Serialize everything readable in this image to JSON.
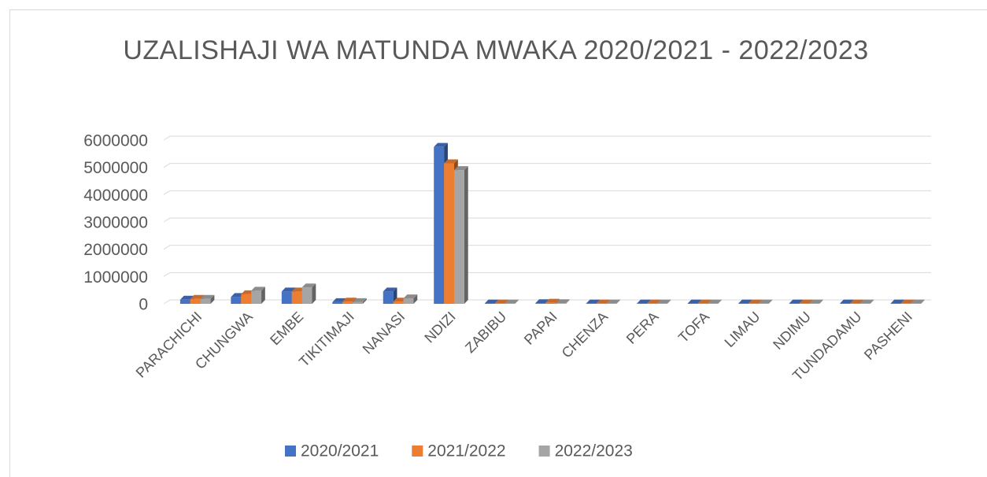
{
  "chart_data": {
    "type": "bar3d",
    "title": "UZALISHAJI WA MATUNDA MWAKA 2020/2021 - 2022/2023",
    "categories": [
      "PARACHICHI",
      "CHUNGWA",
      "EMBE",
      "TIKITIMAJI",
      "NANASI",
      "NDIZI",
      "ZABIBU",
      "PAPAI",
      "CHENZA",
      "PERA",
      "TOFA",
      "LIMAU",
      "NDIMU",
      "TUNDADAMU",
      "PASHENI"
    ],
    "series": [
      {
        "name": "2020/2021",
        "color": "#4472c4",
        "values": [
          150000,
          250000,
          450000,
          60000,
          450000,
          5750000,
          10000,
          20000,
          10000,
          10000,
          10000,
          10000,
          10000,
          10000,
          10000
        ]
      },
      {
        "name": "2021/2022",
        "color": "#ed7d31",
        "values": [
          180000,
          350000,
          450000,
          80000,
          80000,
          5150000,
          10000,
          40000,
          10000,
          10000,
          10000,
          10000,
          10000,
          10000,
          10000
        ]
      },
      {
        "name": "2022/2023",
        "color": "#a5a5a5",
        "values": [
          180000,
          480000,
          600000,
          60000,
          200000,
          4900000,
          10000,
          20000,
          10000,
          10000,
          10000,
          10000,
          10000,
          10000,
          10000
        ]
      }
    ],
    "ylim": [
      0,
      6000000
    ],
    "yticks": [
      0,
      1000000,
      2000000,
      3000000,
      4000000,
      5000000,
      6000000
    ],
    "grid": true,
    "legend": "bottom"
  }
}
